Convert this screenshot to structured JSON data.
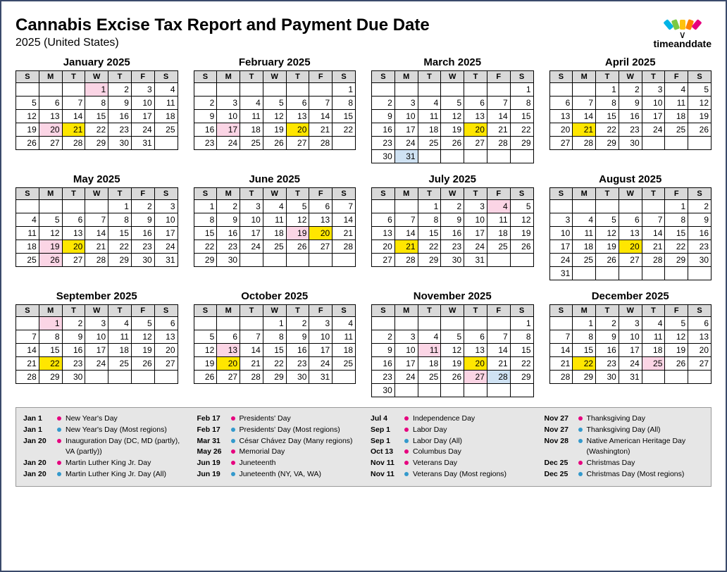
{
  "title": "Cannabis Excise Tax Report and Payment Due Date",
  "subtitle": "2025 (United States)",
  "logo_text": "timeanddate",
  "weekday_headers": [
    "S",
    "M",
    "T",
    "W",
    "T",
    "F",
    "S"
  ],
  "colors": {
    "header_bg": "#d9d9d9",
    "legend_bg": "#e6e6e6",
    "pink": "#fbd5e5",
    "yellow": "#ffe600",
    "blue": "#cfe2f3",
    "dot_pink": "#e6007e",
    "dot_blue": "#3399cc"
  },
  "months": [
    {
      "name": "January 2025",
      "start": 3,
      "days": 31,
      "hl": {
        "1": "pink",
        "20": "pink",
        "21": "yellow"
      }
    },
    {
      "name": "February 2025",
      "start": 6,
      "days": 28,
      "hl": {
        "17": "pink",
        "20": "yellow"
      }
    },
    {
      "name": "March 2025",
      "start": 6,
      "days": 31,
      "hl": {
        "20": "yellow",
        "31": "blue"
      }
    },
    {
      "name": "April 2025",
      "start": 2,
      "days": 30,
      "hl": {
        "21": "yellow"
      }
    },
    {
      "name": "May 2025",
      "start": 4,
      "days": 31,
      "hl": {
        "19": "pink",
        "20": "yellow",
        "26": "pink"
      }
    },
    {
      "name": "June 2025",
      "start": 0,
      "days": 30,
      "hl": {
        "19": "pink",
        "20": "yellow"
      }
    },
    {
      "name": "July 2025",
      "start": 2,
      "days": 31,
      "hl": {
        "4": "pink",
        "21": "yellow"
      }
    },
    {
      "name": "August 2025",
      "start": 5,
      "days": 31,
      "hl": {
        "20": "yellow"
      }
    },
    {
      "name": "September 2025",
      "start": 1,
      "days": 30,
      "hl": {
        "1": "pink",
        "22": "yellow"
      }
    },
    {
      "name": "October 2025",
      "start": 3,
      "days": 31,
      "hl": {
        "13": "pink",
        "20": "yellow"
      }
    },
    {
      "name": "November 2025",
      "start": 6,
      "days": 30,
      "hl": {
        "11": "pink",
        "20": "yellow",
        "27": "pink",
        "28": "blue"
      }
    },
    {
      "name": "December 2025",
      "start": 1,
      "days": 31,
      "hl": {
        "22": "yellow",
        "25": "pink"
      }
    }
  ],
  "legend": [
    [
      {
        "date": "Jan 1",
        "dot": "pink",
        "name": "New Year's Day"
      },
      {
        "date": "Jan 1",
        "dot": "blue",
        "name": "New Year's Day (Most regions)"
      },
      {
        "date": "Jan 20",
        "dot": "pink",
        "name": "Inauguration Day (DC, MD (partly), VA (partly))"
      },
      {
        "date": "Jan 20",
        "dot": "pink",
        "name": "Martin Luther King Jr. Day"
      },
      {
        "date": "Jan 20",
        "dot": "blue",
        "name": "Martin Luther King Jr. Day (All)"
      }
    ],
    [
      {
        "date": "Feb 17",
        "dot": "pink",
        "name": "Presidents' Day"
      },
      {
        "date": "Feb 17",
        "dot": "blue",
        "name": "Presidents' Day (Most regions)"
      },
      {
        "date": "Mar 31",
        "dot": "blue",
        "name": "César Chávez Day (Many regions)"
      },
      {
        "date": "May 26",
        "dot": "pink",
        "name": "Memorial Day"
      },
      {
        "date": "Jun 19",
        "dot": "pink",
        "name": "Juneteenth"
      },
      {
        "date": "Jun 19",
        "dot": "blue",
        "name": "Juneteenth (NY, VA, WA)"
      }
    ],
    [
      {
        "date": "Jul 4",
        "dot": "pink",
        "name": "Independence Day"
      },
      {
        "date": "Sep 1",
        "dot": "pink",
        "name": "Labor Day"
      },
      {
        "date": "Sep 1",
        "dot": "blue",
        "name": "Labor Day (All)"
      },
      {
        "date": "Oct 13",
        "dot": "pink",
        "name": "Columbus Day"
      },
      {
        "date": "Nov 11",
        "dot": "pink",
        "name": "Veterans Day"
      },
      {
        "date": "Nov 11",
        "dot": "blue",
        "name": "Veterans Day (Most regions)"
      }
    ],
    [
      {
        "date": "Nov 27",
        "dot": "pink",
        "name": "Thanksgiving Day"
      },
      {
        "date": "Nov 27",
        "dot": "blue",
        "name": "Thanksgiving Day (All)"
      },
      {
        "date": "Nov 28",
        "dot": "blue",
        "name": "Native American Heritage Day (Washington)"
      },
      {
        "date": "Dec 25",
        "dot": "pink",
        "name": "Christmas Day"
      },
      {
        "date": "Dec 25",
        "dot": "blue",
        "name": "Christmas Day (Most regions)"
      }
    ]
  ]
}
